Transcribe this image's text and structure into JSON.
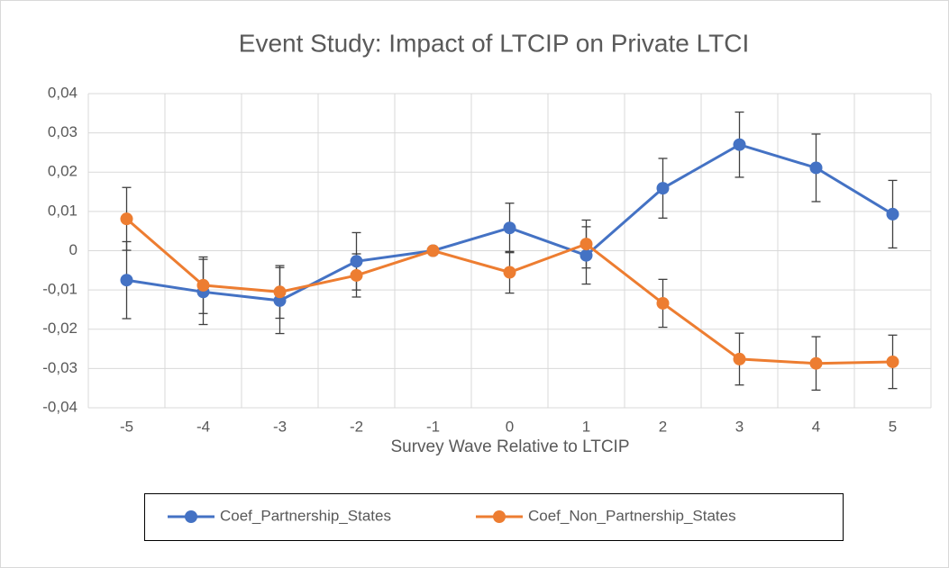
{
  "chart_data": {
    "type": "line",
    "title": "Event Study: Impact of LTCIP on Private LTCI",
    "x_label": "Survey Wave Relative to LTCIP",
    "categories": [
      "-5",
      "-4",
      "-3",
      "-2",
      "-1",
      "0",
      "1",
      "2",
      "3",
      "4",
      "5"
    ],
    "series": [
      {
        "name": "Coef_Partnership_States",
        "color": "#4472c4",
        "values": [
          -0.0075,
          -0.0105,
          -0.0127,
          -0.0027,
          0,
          0.0058,
          -0.0012,
          0.0159,
          0.027,
          0.0211,
          0.0093
        ],
        "errors": [
          0.0098,
          0.0083,
          0.0084,
          0.0073,
          0,
          0.0063,
          0.0073,
          0.0076,
          0.0083,
          0.0086,
          0.0086
        ]
      },
      {
        "name": "Coef_Non_Partnership_States",
        "color": "#ed7d31",
        "values": [
          0.0081,
          -0.0088,
          -0.0105,
          -0.0063,
          0,
          -0.0055,
          0.0017,
          -0.0134,
          -0.0276,
          -0.0287,
          -0.0283
        ],
        "errors": [
          0.008,
          0.0072,
          0.0067,
          0.0055,
          0,
          0.0053,
          0.0061,
          0.0061,
          0.0066,
          0.0068,
          0.0068
        ]
      }
    ],
    "ylim": [
      -0.04,
      0.04
    ],
    "yticks": [
      {
        "value": -0.04,
        "label": "-0,04"
      },
      {
        "value": -0.03,
        "label": "-0,03"
      },
      {
        "value": -0.02,
        "label": "-0,02"
      },
      {
        "value": -0.01,
        "label": "-0,01"
      },
      0,
      {
        "value": 0.01,
        "label": "0,01"
      },
      {
        "value": 0.02,
        "label": "0,02"
      },
      {
        "value": 0.03,
        "label": "0,03"
      },
      {
        "value": 0.04,
        "label": "0,04"
      }
    ],
    "grid": true,
    "legend": "bottom"
  }
}
